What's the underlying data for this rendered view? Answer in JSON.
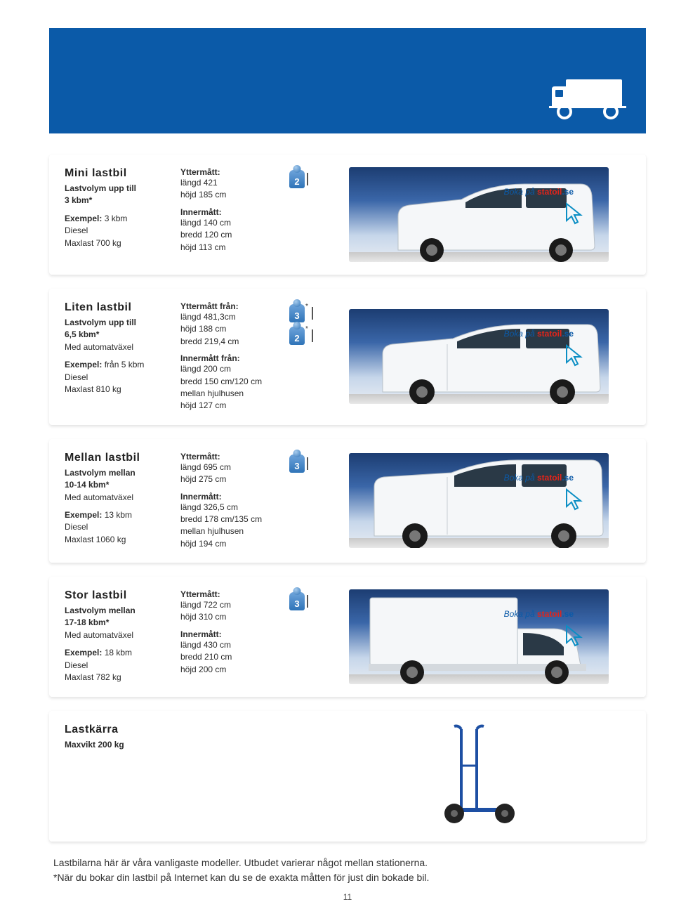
{
  "colors": {
    "banner": "#0b5aa8",
    "sky_top": "#1c3d72",
    "sky_bottom": "#e8edf3",
    "accent_statoil": "#e2241a",
    "text": "#2a2a2a"
  },
  "boka_label": {
    "prefix": "Boka på ",
    "brand1": "statoil",
    "brand2": ".se"
  },
  "vehicles": [
    {
      "key": "mini",
      "title": "Mini lastbil",
      "volume_label": "Lastvolym upp till",
      "volume": "3 kbm*",
      "auto": "",
      "example_label": "Exempel:",
      "example": "3 kbm",
      "fuel": "Diesel",
      "maxload": "Maxlast 700 kg",
      "outer_head": "Yttermått:",
      "outer": [
        "längd 421",
        "höjd 185 cm"
      ],
      "inner_head": "Innermått:",
      "inner": [
        "längd 140 cm",
        "bredd 120 cm",
        "höjd 113 cm"
      ],
      "seats": [
        {
          "n": "2",
          "star": false
        }
      ]
    },
    {
      "key": "liten",
      "title": "Liten lastbil",
      "volume_label": "Lastvolym upp till",
      "volume": "6,5 kbm*",
      "auto": "Med automatväxel",
      "example_label": "Exempel:",
      "example": "från 5 kbm",
      "fuel": "Diesel",
      "maxload": "Maxlast 810 kg",
      "outer_head": "Yttermått från:",
      "outer": [
        "längd 481,3cm",
        "höjd 188 cm",
        "bredd 219,4 cm"
      ],
      "inner_head": "Innermått från:",
      "inner": [
        "längd 200 cm",
        "bredd 150 cm/120 cm",
        "mellan hjulhusen",
        "höjd 127 cm"
      ],
      "seats": [
        {
          "n": "3",
          "star": true
        },
        {
          "n": "2",
          "star": true
        }
      ]
    },
    {
      "key": "mellan",
      "title": "Mellan lastbil",
      "volume_label": "Lastvolym mellan",
      "volume": "10-14 kbm*",
      "auto": "Med automatväxel",
      "example_label": "Exempel:",
      "example": "13 kbm",
      "fuel": "Diesel",
      "maxload": "Maxlast 1060 kg",
      "outer_head": "Yttermått:",
      "outer": [
        "längd 695 cm",
        "höjd 275 cm"
      ],
      "inner_head": "Innermått:",
      "inner": [
        "längd 326,5 cm",
        "bredd 178 cm/135 cm",
        "mellan hjulhusen",
        "höjd 194 cm"
      ],
      "seats": [
        {
          "n": "3",
          "star": false
        }
      ]
    },
    {
      "key": "stor",
      "title": "Stor lastbil",
      "volume_label": "Lastvolym mellan",
      "volume": "17-18 kbm*",
      "auto": "Med automatväxel",
      "example_label": "Exempel:",
      "example": "18 kbm",
      "fuel": "Diesel",
      "maxload": "Maxlast 782 kg",
      "outer_head": "Yttermått:",
      "outer": [
        "längd 722 cm",
        "höjd 310 cm"
      ],
      "inner_head": "Innermått:",
      "inner": [
        "längd 430 cm",
        "bredd 210 cm",
        "höjd 200 cm"
      ],
      "seats": [
        {
          "n": "3",
          "star": false
        }
      ]
    }
  ],
  "trolley": {
    "title": "Lastkärra",
    "maxweight": "Maxvikt 200 kg"
  },
  "footer_line1": "Lastbilarna här är våra vanligaste modeller. Utbudet varierar något mellan stationerna.",
  "footer_line2": "*När du bokar din lastbil på Internet kan du se de exakta måtten för just din bokade bil.",
  "page_number": "11"
}
